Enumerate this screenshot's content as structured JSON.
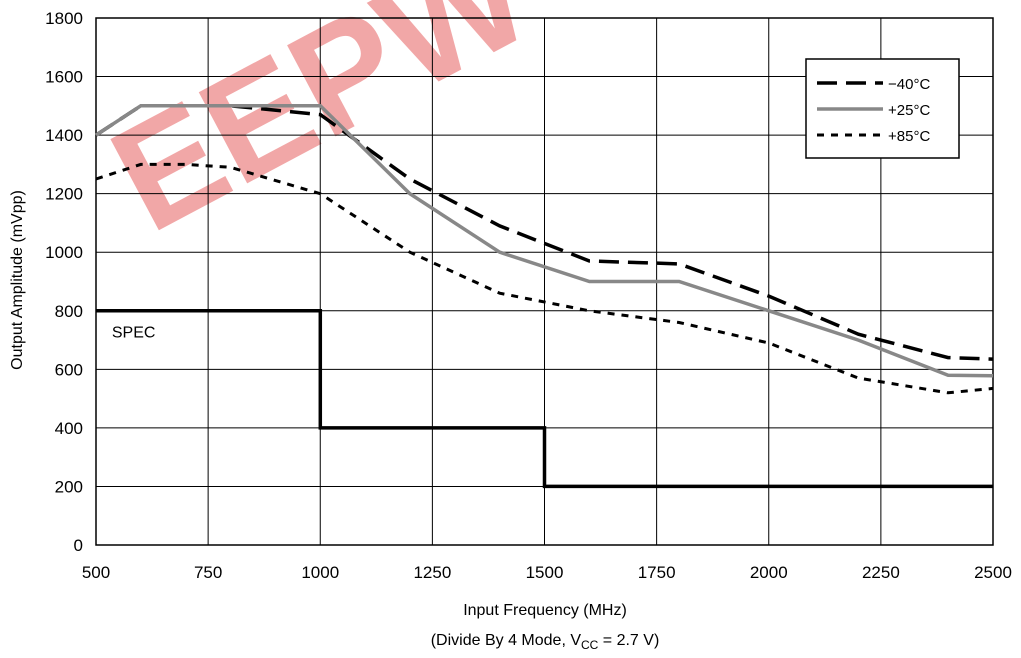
{
  "chart_data": {
    "type": "line",
    "xlabel": "Input Frequency (MHz)",
    "subtitle": {
      "prefix": "(Divide By 4 Mode, V",
      "subscript": "CC",
      "suffix": " = 2.7 V)"
    },
    "ylabel": "Output Amplitude (mVpp)",
    "xlim": [
      500,
      2500
    ],
    "ylim": [
      0,
      1800
    ],
    "xticks": [
      500,
      750,
      1000,
      1250,
      1500,
      1750,
      2000,
      2250,
      2500
    ],
    "yticks": [
      0,
      200,
      400,
      600,
      800,
      1000,
      1200,
      1400,
      1600,
      1800
    ],
    "grid": true,
    "legend_position": "top-right",
    "watermark": "EEPW",
    "series": [
      {
        "name": "−40°C",
        "style": "dashed",
        "color": "#000000",
        "x": [
          500,
          600,
          800,
          1000,
          1200,
          1400,
          1600,
          1800,
          2000,
          2200,
          2400,
          2500
        ],
        "y": [
          1400,
          1500,
          1500,
          1470,
          1250,
          1090,
          970,
          960,
          850,
          720,
          640,
          635
        ]
      },
      {
        "name": "+25°C",
        "style": "solid",
        "color": "#888888",
        "x": [
          500,
          600,
          800,
          1000,
          1200,
          1400,
          1600,
          1800,
          2000,
          2200,
          2400,
          2500
        ],
        "y": [
          1400,
          1500,
          1500,
          1500,
          1200,
          1000,
          900,
          900,
          800,
          700,
          580,
          578
        ]
      },
      {
        "name": "+85°C",
        "style": "dotted",
        "color": "#000000",
        "x": [
          500,
          600,
          700,
          800,
          1000,
          1200,
          1400,
          1600,
          1800,
          2000,
          2200,
          2400,
          2500
        ],
        "y": [
          1250,
          1300,
          1300,
          1290,
          1200,
          1000,
          860,
          800,
          760,
          690,
          570,
          520,
          535
        ]
      },
      {
        "name": "SPEC",
        "style": "step",
        "color": "#000000",
        "x": [
          500,
          1000,
          1000,
          1500,
          1500,
          2500
        ],
        "y": [
          800,
          800,
          400,
          400,
          200,
          200
        ]
      }
    ],
    "annotations": [
      {
        "text": "SPEC",
        "x": 580,
        "y": 730
      }
    ]
  }
}
